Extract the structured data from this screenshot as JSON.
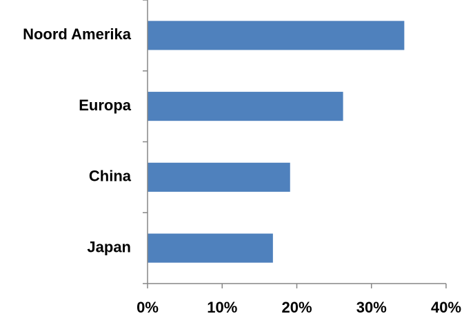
{
  "chart_data": {
    "type": "bar",
    "orientation": "horizontal",
    "categories": [
      "Noord Amerika",
      "Europa",
      "China",
      "Japan"
    ],
    "values": [
      34.4,
      26.2,
      19.1,
      16.8
    ],
    "value_unit": "%",
    "title": "",
    "xlabel": "",
    "ylabel": "",
    "xlim": [
      0,
      40
    ],
    "xticks": [
      "0%",
      "10%",
      "20%",
      "30%",
      "40%"
    ],
    "grid": false,
    "legend": "none",
    "colors": {
      "bar": "#4F81BD",
      "axis": "#868686"
    }
  }
}
